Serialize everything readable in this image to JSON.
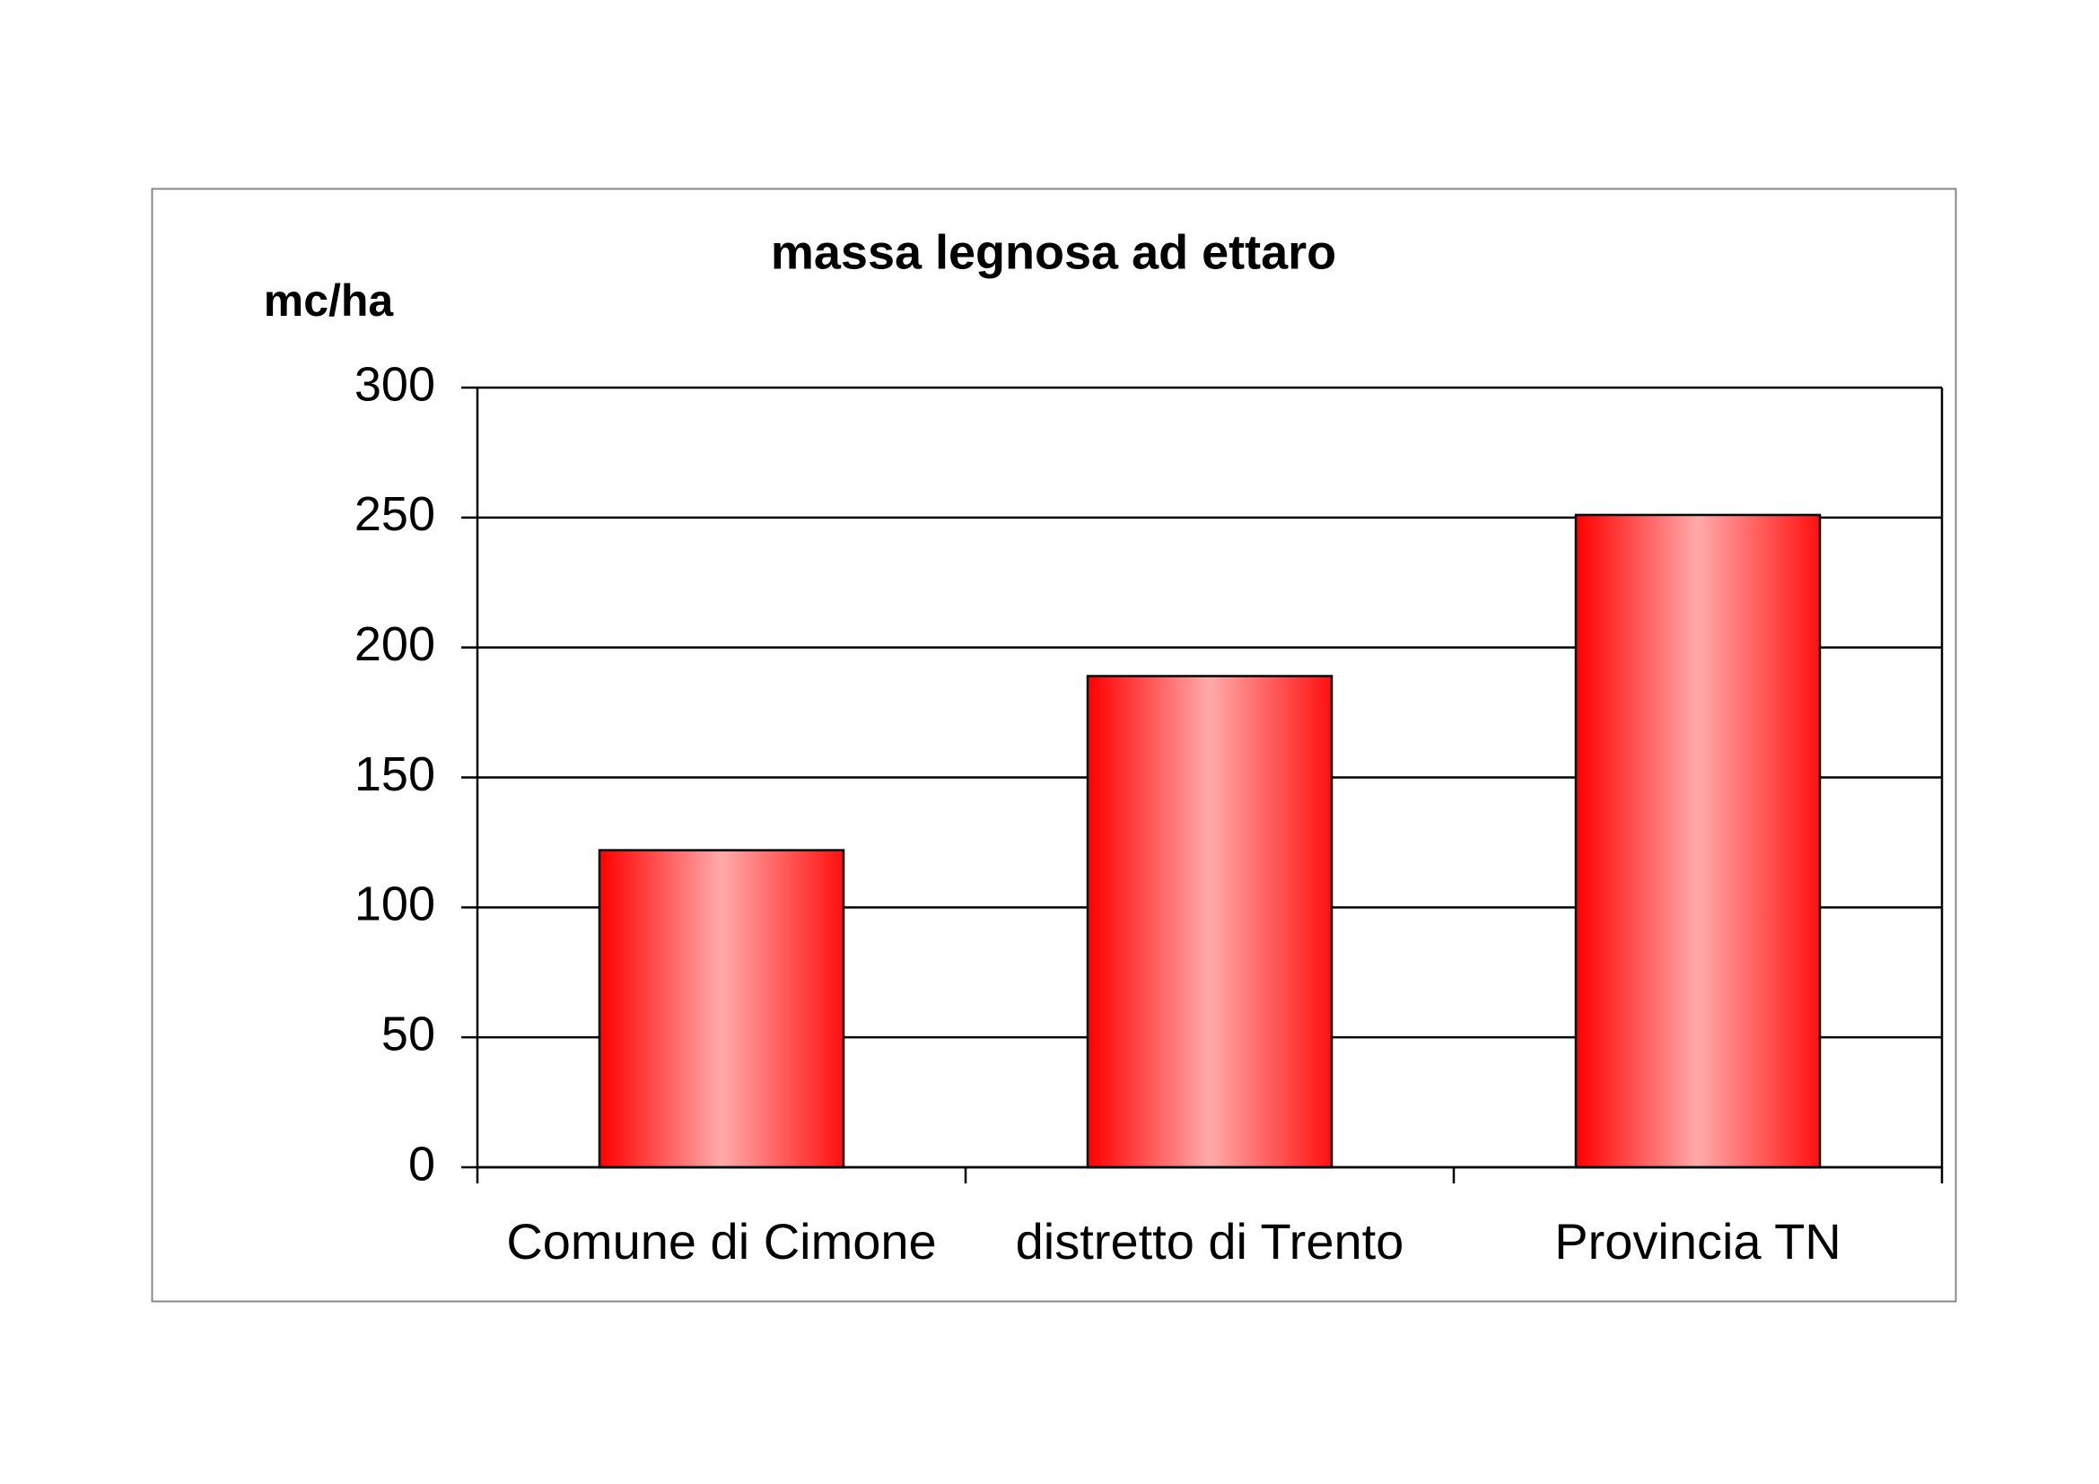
{
  "chart_data": {
    "type": "bar",
    "title": "massa legnosa ad ettaro",
    "y_label": "mc/ha",
    "categories": [
      "Comune di Cimone",
      "distretto di Trento",
      "Provincia TN"
    ],
    "values": [
      122,
      189,
      251
    ],
    "color": "#ff0000",
    "ylim": [
      0,
      300
    ],
    "yticks": [
      0,
      50,
      100,
      150,
      200,
      250,
      300
    ],
    "grid": true
  }
}
